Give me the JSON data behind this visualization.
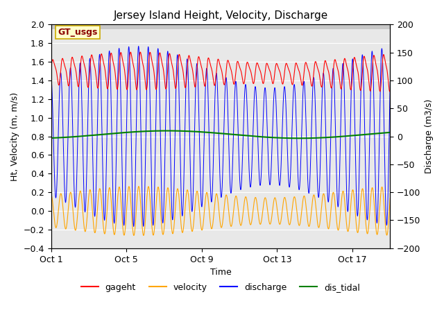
{
  "title": "Jersey Island Height, Velocity, Discharge",
  "xlabel": "Time",
  "ylabel_left": "Ht, Velocity (m, m/s)",
  "ylabel_right": "Discharge (m3/s)",
  "ylim_left": [
    -0.4,
    2.0
  ],
  "ylim_right": [
    -200,
    200
  ],
  "yticks_left": [
    -0.4,
    -0.2,
    0.0,
    0.2,
    0.4,
    0.6,
    0.8,
    1.0,
    1.2,
    1.4,
    1.6,
    1.8,
    2.0
  ],
  "yticks_right": [
    -200,
    -150,
    -100,
    -50,
    0,
    50,
    100,
    150,
    200
  ],
  "xtick_positions": [
    0,
    4,
    8,
    12,
    16
  ],
  "xtick_labels": [
    "Oct 1",
    "Oct 5",
    "Oct 9",
    "Oct 13",
    "Oct 17"
  ],
  "legend_labels": [
    "gageht",
    "velocity",
    "discharge",
    "dis_tidal"
  ],
  "legend_colors": [
    "red",
    "orange",
    "blue",
    "green"
  ],
  "annotation_text": "GT_usgs",
  "annotation_color": "darkred",
  "annotation_bg": "#ffffcc",
  "bg_upper_color": "#d8d8d8",
  "bg_lower_color": "#e8e8e8",
  "gageht_color": "red",
  "velocity_color": "orange",
  "discharge_color": "blue",
  "dis_tidal_color": "green",
  "n_days": 18,
  "tidal_period_hours": 12.4,
  "dis_tidal_base": 0.82,
  "dis_tidal_amp": 0.04
}
